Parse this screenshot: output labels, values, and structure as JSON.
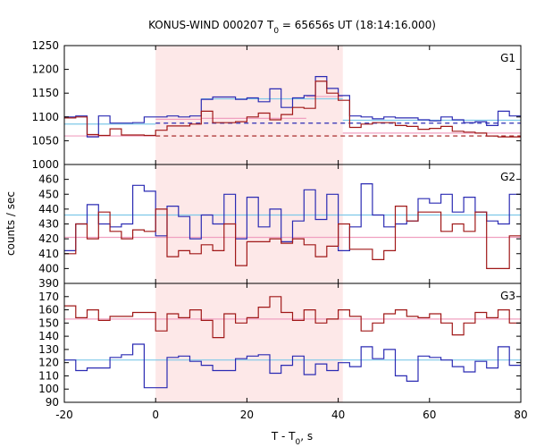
{
  "chart_data": {
    "type": "line",
    "title_main": "KONUS-WIND 000207 T",
    "title_sub": "0",
    "title_rest": " = 65656s UT (18:14:16.000)",
    "xlabel_main": "T - T",
    "xlabel_sub": "0",
    "xlabel_rest": ", s",
    "ylabel": "counts / sec",
    "xlim": [
      -20,
      80
    ],
    "xticks": [
      "-20",
      "0",
      "20",
      "40",
      "60",
      "80"
    ],
    "highlight_range": [
      0,
      41
    ],
    "colors": {
      "blue": "#2b2bb3",
      "red": "#a01818",
      "light_blue": "#7ec8e8",
      "pink": "#f0a0c0",
      "band": "#fde8e8"
    },
    "panels": [
      {
        "label": "G1",
        "ylim": [
          1000,
          1250
        ],
        "yticks": [
          "1000",
          "1050",
          "1100",
          "1150",
          "1200",
          "1250"
        ],
        "series": [
          {
            "color_key": "blue",
            "x": [
              -20,
              -17.5,
              -15,
              -12.5,
              -10,
              -7.5,
              -5,
              -2.5,
              0,
              2.5,
              5,
              7.5,
              10,
              12.5,
              15,
              17.5,
              20,
              22.5,
              25,
              27.5,
              30,
              32.5,
              35,
              37.5,
              40,
              42.5,
              45,
              47.5,
              50,
              52.5,
              55,
              57.5,
              60,
              62.5,
              65,
              67.5,
              70,
              72.5,
              75,
              77.5,
              80
            ],
            "y": [
              1100,
              1102,
              1058,
              1102,
              1087,
              1087,
              1088,
              1100,
              1100,
              1102,
              1100,
              1102,
              1137,
              1142,
              1142,
              1137,
              1140,
              1132,
              1159,
              1120,
              1140,
              1145,
              1185,
              1160,
              1145,
              1102,
              1100,
              1096,
              1100,
              1098,
              1098,
              1094,
              1092,
              1100,
              1094,
              1088,
              1090,
              1082,
              1112,
              1102,
              1100
            ]
          },
          {
            "color_key": "red",
            "x": [
              -20,
              -17.5,
              -15,
              -12.5,
              -10,
              -7.5,
              -5,
              -2.5,
              0,
              2.5,
              5,
              7.5,
              10,
              12.5,
              15,
              17.5,
              20,
              22.5,
              25,
              27.5,
              30,
              32.5,
              35,
              37.5,
              40,
              42.5,
              45,
              47.5,
              50,
              52.5,
              55,
              57.5,
              60,
              62.5,
              65,
              67.5,
              70,
              72.5,
              75,
              77.5,
              80
            ],
            "y": [
              1098,
              1100,
              1063,
              1061,
              1075,
              1062,
              1062,
              1061,
              1072,
              1081,
              1081,
              1085,
              1112,
              1088,
              1088,
              1090,
              1100,
              1108,
              1094,
              1105,
              1120,
              1118,
              1175,
              1150,
              1135,
              1078,
              1085,
              1088,
              1088,
              1082,
              1080,
              1074,
              1076,
              1080,
              1070,
              1068,
              1066,
              1060,
              1058,
              1058,
              1050
            ]
          }
        ],
        "levels": [
          {
            "color_key": "light_blue",
            "style": "solid",
            "x0": -20,
            "x1": 0,
            "y": 1085
          },
          {
            "color_key": "pink",
            "style": "solid",
            "x0": -20,
            "x1": 0,
            "y": 1060
          },
          {
            "color_key": "pink",
            "style": "solid",
            "x0": 0,
            "x1": 10,
            "y": 1095
          },
          {
            "color_key": "pink",
            "style": "solid",
            "x0": 10,
            "x1": 33,
            "y": 1097
          },
          {
            "color_key": "light_blue",
            "style": "solid",
            "x0": 10,
            "x1": 41,
            "y": 1138
          },
          {
            "color_key": "pink",
            "style": "solid",
            "x0": 33,
            "x1": 41,
            "y": 1143
          },
          {
            "color_key": "light_blue",
            "style": "solid",
            "x0": 41,
            "x1": 80,
            "y": 1093
          },
          {
            "color_key": "pink",
            "style": "solid",
            "x0": 41,
            "x1": 80,
            "y": 1066
          },
          {
            "color_key": "blue",
            "style": "dashed",
            "x0": 0,
            "x1": 80,
            "y": 1087
          },
          {
            "color_key": "red",
            "style": "dashed",
            "x0": 0,
            "x1": 80,
            "y": 1060
          }
        ]
      },
      {
        "label": "G2",
        "ylim": [
          390,
          470
        ],
        "yticks": [
          "390",
          "400",
          "410",
          "420",
          "430",
          "440",
          "450",
          "460"
        ],
        "series": [
          {
            "color_key": "blue",
            "x": [
              -20,
              -17.5,
              -15,
              -12.5,
              -10,
              -7.5,
              -5,
              -2.5,
              0,
              2.5,
              5,
              7.5,
              10,
              12.5,
              15,
              17.5,
              20,
              22.5,
              25,
              27.5,
              30,
              32.5,
              35,
              37.5,
              40,
              42.5,
              45,
              47.5,
              50,
              52.5,
              55,
              57.5,
              60,
              62.5,
              65,
              67.5,
              70,
              72.5,
              75,
              77.5,
              80
            ],
            "y": [
              412,
              430,
              443,
              430,
              428,
              430,
              456,
              452,
              422,
              442,
              435,
              420,
              436,
              430,
              450,
              420,
              448,
              428,
              440,
              418,
              432,
              453,
              433,
              450,
              412,
              428,
              457,
              436,
              428,
              430,
              432,
              447,
              444,
              450,
              438,
              448,
              438,
              432,
              430,
              450,
              452
            ]
          },
          {
            "color_key": "red",
            "x": [
              -20,
              -17.5,
              -15,
              -12.5,
              -10,
              -7.5,
              -5,
              -2.5,
              0,
              2.5,
              5,
              7.5,
              10,
              12.5,
              15,
              17.5,
              20,
              22.5,
              25,
              27.5,
              30,
              32.5,
              35,
              37.5,
              40,
              42.5,
              45,
              47.5,
              50,
              52.5,
              55,
              57.5,
              60,
              62.5,
              65,
              67.5,
              70,
              72.5,
              75,
              77.5,
              80
            ],
            "y": [
              410,
              430,
              420,
              438,
              425,
              420,
              426,
              425,
              440,
              408,
              412,
              410,
              416,
              412,
              430,
              402,
              418,
              418,
              420,
              417,
              420,
              416,
              408,
              415,
              430,
              413,
              413,
              406,
              412,
              442,
              432,
              438,
              438,
              425,
              430,
              425,
              438,
              400,
              400,
              422,
              446
            ]
          }
        ],
        "levels": [
          {
            "color_key": "light_blue",
            "style": "solid",
            "x0": -20,
            "x1": 80,
            "y": 436
          },
          {
            "color_key": "pink",
            "style": "solid",
            "x0": -20,
            "x1": 80,
            "y": 421
          }
        ]
      },
      {
        "label": "G3",
        "ylim": [
          90,
          180
        ],
        "yticks": [
          "90",
          "100",
          "110",
          "120",
          "130",
          "140",
          "150",
          "160",
          "170"
        ],
        "series": [
          {
            "color_key": "blue",
            "x": [
              -20,
              -17.5,
              -15,
              -12.5,
              -10,
              -7.5,
              -5,
              -2.5,
              0,
              2.5,
              5,
              7.5,
              10,
              12.5,
              15,
              17.5,
              20,
              22.5,
              25,
              27.5,
              30,
              32.5,
              35,
              37.5,
              40,
              42.5,
              45,
              47.5,
              50,
              52.5,
              55,
              57.5,
              60,
              62.5,
              65,
              67.5,
              70,
              72.5,
              75,
              77.5,
              80
            ],
            "y": [
              122,
              114,
              116,
              116,
              124,
              126,
              134,
              101,
              101,
              124,
              125,
              121,
              118,
              114,
              114,
              123,
              125,
              126,
              112,
              118,
              125,
              111,
              119,
              114,
              120,
              117,
              132,
              123,
              130,
              110,
              106,
              125,
              124,
              122,
              117,
              113,
              121,
              116,
              132,
              118,
              122
            ]
          },
          {
            "color_key": "red",
            "x": [
              -20,
              -17.5,
              -15,
              -12.5,
              -10,
              -7.5,
              -5,
              -2.5,
              0,
              2.5,
              5,
              7.5,
              10,
              12.5,
              15,
              17.5,
              20,
              22.5,
              25,
              27.5,
              30,
              32.5,
              35,
              37.5,
              40,
              42.5,
              45,
              47.5,
              50,
              52.5,
              55,
              57.5,
              60,
              62.5,
              65,
              67.5,
              70,
              72.5,
              75,
              77.5,
              80
            ],
            "y": [
              163,
              154,
              160,
              152,
              155,
              155,
              158,
              158,
              144,
              157,
              154,
              160,
              152,
              139,
              157,
              150,
              154,
              162,
              170,
              158,
              152,
              160,
              150,
              153,
              160,
              155,
              144,
              150,
              157,
              160,
              155,
              154,
              157,
              150,
              141,
              150,
              158,
              154,
              160,
              150,
              155
            ]
          }
        ],
        "levels": [
          {
            "color_key": "pink",
            "style": "solid",
            "x0": -20,
            "x1": 80,
            "y": 153
          },
          {
            "color_key": "light_blue",
            "style": "solid",
            "x0": -20,
            "x1": 80,
            "y": 122
          }
        ]
      }
    ]
  }
}
